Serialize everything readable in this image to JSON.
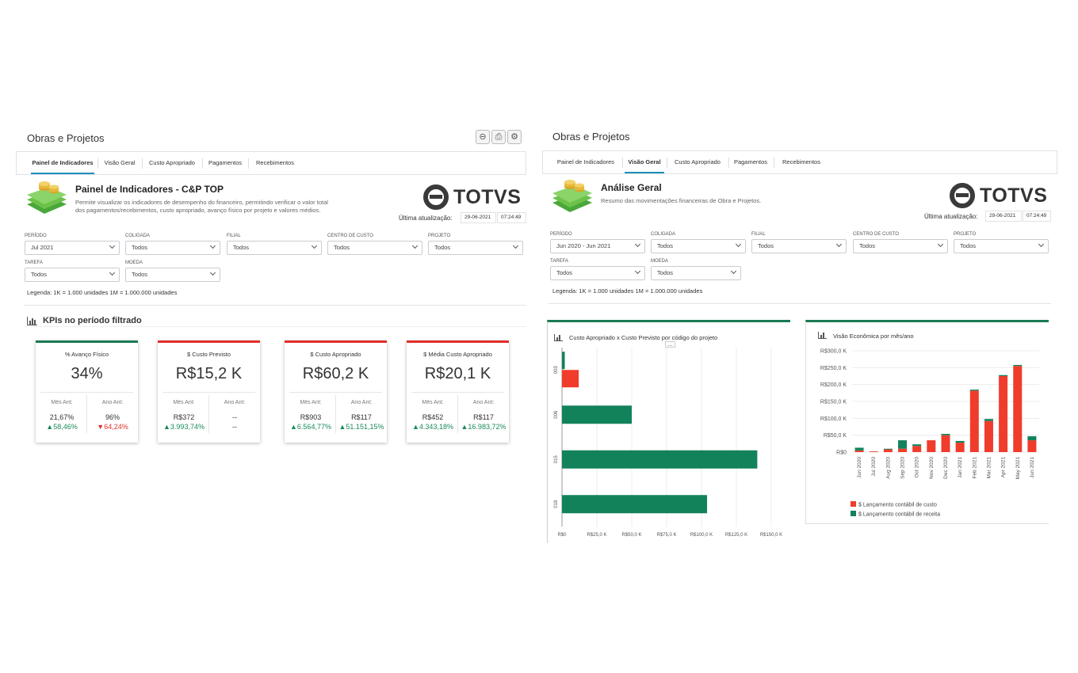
{
  "left": {
    "app_title": "Obras e Projetos",
    "toolbar_icons": [
      "minus-circle-icon",
      "print-icon",
      "gear-icon"
    ],
    "tabs": [
      {
        "label": "Painel de Indicadores",
        "active": true
      },
      {
        "label": "Visão Geral",
        "active": false
      },
      {
        "label": "Custo Apropriado",
        "active": false
      },
      {
        "label": "Pagamentos",
        "active": false
      },
      {
        "label": "Recebimentos",
        "active": false
      }
    ],
    "header": {
      "title": "Painel de Indicadores - C&P TOP",
      "description_line1": "Permite visualizar os indicadores de desempenho do financeiro, permitindo verificar o valor total",
      "description_line2": "dos pagamentos/recebimentos, custo apropriado, avanço físico por projeto e valores médios."
    },
    "brand": "TOTVS",
    "last_update": {
      "label": "Última atualização:",
      "date": "29-06-2021",
      "time": "07:24:49"
    },
    "filters": [
      {
        "label": "PERÍODO",
        "value": "Jul 2021"
      },
      {
        "label": "COLIGADA",
        "value": "Todos"
      },
      {
        "label": "FILIAL",
        "value": "Todos"
      },
      {
        "label": "CENTRO DE CUSTO",
        "value": "Todos"
      },
      {
        "label": "PROJETO",
        "value": "Todos"
      },
      {
        "label": "TAREFA",
        "value": "Todos"
      },
      {
        "label": "MOEDA",
        "value": "Todos"
      }
    ],
    "legend": "Legenda: 1K = 1.000 unidades 1M = 1.000.000 unidades",
    "kpi_section_title": "KPIs no período filtrado",
    "kpis": [
      {
        "title": "% Avanço Físico",
        "value": "34%",
        "accent": "#1a7a53",
        "mes_label": "Mês Ant:",
        "mes_val": "21,67%",
        "mes_delta": "▲58,46%",
        "mes_dir": "up",
        "ano_label": "Ano Ant:",
        "ano_val": "96%",
        "ano_delta": "▼64,24%",
        "ano_dir": "down"
      },
      {
        "title": "$ Custo Previsto",
        "value": "R$15,2 K",
        "accent": "#e0302a",
        "mes_label": "Mês Ant:",
        "mes_val": "R$372",
        "mes_delta": "▲3.993,74%",
        "mes_dir": "up",
        "ano_label": "Ano Ant:",
        "ano_val": "--",
        "ano_delta": "--",
        "ano_dir": "none"
      },
      {
        "title": "$ Custo Apropriado",
        "value": "R$60,2 K",
        "accent": "#e0302a",
        "mes_label": "Mês Ant:",
        "mes_val": "R$903",
        "mes_delta": "▲6.564,77%",
        "mes_dir": "up",
        "ano_label": "Ano Ant:",
        "ano_val": "R$117",
        "ano_delta": "▲51.151,15%",
        "ano_dir": "up"
      },
      {
        "title": "$ Média Custo Apropriado",
        "value": "R$20,1 K",
        "accent": "#e0302a",
        "mes_label": "Mês Ant:",
        "mes_val": "R$452",
        "mes_delta": "▲4.343,18%",
        "mes_dir": "up",
        "ano_label": "Ano Ant:",
        "ano_val": "R$117",
        "ano_delta": "▲16.983,72%",
        "ano_dir": "up"
      }
    ]
  },
  "right": {
    "app_title": "Obras e Projetos",
    "tabs": [
      {
        "label": "Painel de Indicadores",
        "active": false
      },
      {
        "label": "Visão Geral",
        "active": true
      },
      {
        "label": "Custo Apropriado",
        "active": false
      },
      {
        "label": "Pagamentos",
        "active": false
      },
      {
        "label": "Recebimentos",
        "active": false
      }
    ],
    "header": {
      "title": "Análise Geral",
      "description": "Resumo das movimentações financeiras de Obra e Projetos."
    },
    "brand": "TOTVS",
    "last_update": {
      "label": "Última atualização:",
      "date": "29-06-2021",
      "time": "07:24:49"
    },
    "filters": [
      {
        "label": "PERÍODO",
        "value": "Jun 2020 - Jun 2021"
      },
      {
        "label": "COLIGADA",
        "value": "Todos"
      },
      {
        "label": "FILIAL",
        "value": "Todos"
      },
      {
        "label": "CENTRO DE CUSTO",
        "value": "Todos"
      },
      {
        "label": "PROJETO",
        "value": "Todos"
      },
      {
        "label": "TAREFA",
        "value": "Todos"
      },
      {
        "label": "MOEDA",
        "value": "Todos"
      }
    ],
    "legend": "Legenda: 1K = 1.000 unidades 1M = 1.000.000 unidades",
    "more_menu": "...",
    "colors": {
      "green": "#12825a",
      "red": "#f03c2c"
    }
  },
  "chart_data": [
    {
      "type": "bar",
      "orientation": "horizontal",
      "title": "Custo Apropriado x Custo Previsto por código do projeto",
      "categories": [
        "003",
        "006",
        "015",
        "018"
      ],
      "series": [
        {
          "color": "#12825a",
          "values": [
            2,
            50,
            140,
            104
          ]
        },
        {
          "color": "#f03c2c",
          "values": [
            12,
            0,
            0,
            0
          ]
        }
      ],
      "x_ticks": [
        "R$0",
        "R$25,0 K",
        "R$50,0 K",
        "R$75,0 K",
        "R$100,0 K",
        "R$125,0 K",
        "R$150,0 K"
      ],
      "xlim": [
        0,
        150
      ]
    },
    {
      "type": "bar",
      "stacked": true,
      "title": "Visão Econômica por mês/ano",
      "categories": [
        "Jun 2020",
        "Jul 2020",
        "Aug 2020",
        "Sep 2020",
        "Oct 2020",
        "Nov 2020",
        "Dec 2020",
        "Jan 2021",
        "Feb 2021",
        "Mar 2021",
        "Apr 2021",
        "May 2021",
        "Jun 2021"
      ],
      "series": [
        {
          "name": "$ Lançamento contábil de custo",
          "color": "#f03c2c",
          "values": [
            5,
            2,
            8,
            10,
            18,
            35,
            50,
            28,
            182,
            92,
            225,
            255,
            35
          ]
        },
        {
          "name": "$ Lançamento contábil de receita",
          "color": "#12825a",
          "values": [
            8,
            0,
            2,
            25,
            5,
            0,
            4,
            5,
            3,
            6,
            3,
            3,
            12
          ]
        }
      ],
      "y_ticks": [
        "R$0",
        "R$50,0 K",
        "R$100,0 K",
        "R$150,0 K",
        "R$200,0 K",
        "R$250,0 K",
        "R$300,0 K"
      ],
      "ylim": [
        0,
        300
      ]
    }
  ]
}
